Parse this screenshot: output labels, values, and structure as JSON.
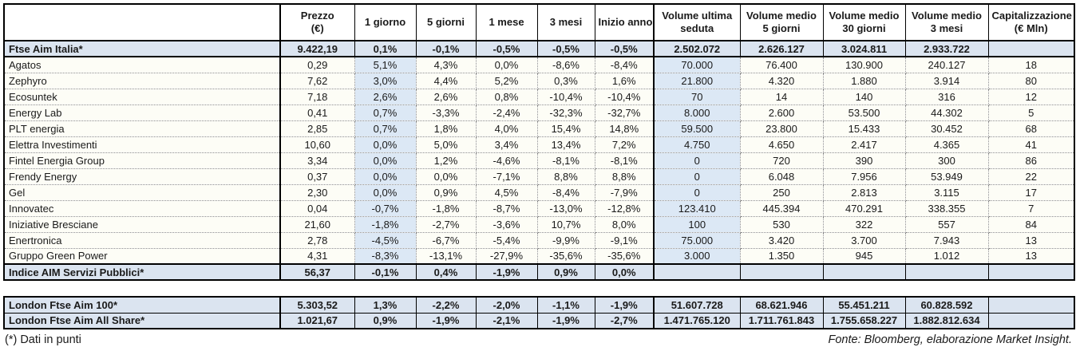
{
  "page": {
    "footnote": "(*) Dati in punti",
    "source": "Fonte: Bloomberg, elaborazione Market Insight."
  },
  "colors": {
    "highlight_row": "#dbe4f0",
    "highlight_column": "#dce8f5",
    "grid": "#000000",
    "cell_bg": "#fdfdf6"
  },
  "table": {
    "columns": [
      {
        "id": "name",
        "label_lines": [
          ""
        ]
      },
      {
        "id": "prezzo",
        "label_lines": [
          "Prezzo",
          "(€)"
        ]
      },
      {
        "id": "d1",
        "label_lines": [
          "1 giorno"
        ]
      },
      {
        "id": "d5",
        "label_lines": [
          "5 giorni"
        ]
      },
      {
        "id": "m1",
        "label_lines": [
          "1 mese"
        ]
      },
      {
        "id": "m3",
        "label_lines": [
          "3 mesi"
        ]
      },
      {
        "id": "ytd",
        "label_lines": [
          "Inizio anno"
        ]
      },
      {
        "id": "vol_last",
        "label_lines": [
          "Volume ultima",
          "seduta"
        ]
      },
      {
        "id": "vol5",
        "label_lines": [
          "Volume medio",
          "5 giorni"
        ]
      },
      {
        "id": "vol30",
        "label_lines": [
          "Volume medio",
          "30 giorni"
        ]
      },
      {
        "id": "vol3m",
        "label_lines": [
          "Volume medio",
          "3 mesi"
        ]
      },
      {
        "id": "cap",
        "label_lines": [
          "Capitalizzazione",
          "(€ Mln)"
        ]
      }
    ],
    "ftse_row": {
      "cells": [
        "Ftse Aim Italia*",
        "9.422,19",
        "0,1%",
        "-0,1%",
        "-0,5%",
        "-0,5%",
        "-0,5%",
        "2.502.072",
        "2.626.127",
        "3.024.811",
        "2.933.722",
        ""
      ]
    },
    "company_rows": [
      {
        "cells": [
          "Agatos",
          "0,29",
          "5,1%",
          "4,3%",
          "0,0%",
          "-8,6%",
          "-8,4%",
          "70.000",
          "76.400",
          "130.900",
          "240.127",
          "18"
        ]
      },
      {
        "cells": [
          "Zephyro",
          "7,62",
          "3,0%",
          "4,4%",
          "5,2%",
          "0,3%",
          "1,6%",
          "21.800",
          "4.320",
          "1.880",
          "3.914",
          "80"
        ]
      },
      {
        "cells": [
          "Ecosuntek",
          "7,18",
          "2,6%",
          "2,6%",
          "0,8%",
          "-10,4%",
          "-10,4%",
          "70",
          "14",
          "140",
          "316",
          "12"
        ]
      },
      {
        "cells": [
          "Energy Lab",
          "0,41",
          "0,7%",
          "-3,3%",
          "-2,4%",
          "-32,3%",
          "-32,7%",
          "8.000",
          "2.600",
          "53.500",
          "44.302",
          "5"
        ]
      },
      {
        "cells": [
          "PLT energia",
          "2,85",
          "0,7%",
          "1,8%",
          "4,0%",
          "15,4%",
          "14,8%",
          "59.500",
          "23.800",
          "15.433",
          "30.452",
          "68"
        ]
      },
      {
        "cells": [
          "Elettra Investimenti",
          "10,60",
          "0,0%",
          "5,0%",
          "3,4%",
          "13,4%",
          "7,2%",
          "4.750",
          "4.650",
          "2.417",
          "4.365",
          "41"
        ]
      },
      {
        "cells": [
          "Fintel Energia Group",
          "3,34",
          "0,0%",
          "1,2%",
          "-4,6%",
          "-8,1%",
          "-8,1%",
          "0",
          "720",
          "390",
          "300",
          "86"
        ]
      },
      {
        "cells": [
          "Frendy Energy",
          "0,37",
          "0,0%",
          "0,0%",
          "-7,1%",
          "8,8%",
          "8,8%",
          "0",
          "6.048",
          "7.956",
          "53.949",
          "22"
        ]
      },
      {
        "cells": [
          "Gel",
          "2,30",
          "0,0%",
          "0,9%",
          "4,5%",
          "-8,4%",
          "-7,9%",
          "0",
          "250",
          "2.813",
          "3.115",
          "17"
        ]
      },
      {
        "cells": [
          "Innovatec",
          "0,04",
          "-0,7%",
          "-1,8%",
          "-8,7%",
          "-13,0%",
          "-12,8%",
          "123.410",
          "445.394",
          "470.291",
          "338.355",
          "7"
        ]
      },
      {
        "cells": [
          "Iniziative Bresciane",
          "21,60",
          "-1,8%",
          "-2,7%",
          "-3,6%",
          "10,7%",
          "8,0%",
          "100",
          "530",
          "322",
          "557",
          "84"
        ]
      },
      {
        "cells": [
          "Enertronica",
          "2,78",
          "-4,5%",
          "-6,7%",
          "-5,4%",
          "-9,9%",
          "-9,1%",
          "75.000",
          "3.420",
          "3.700",
          "7.943",
          "13"
        ]
      },
      {
        "cells": [
          "Gruppo Green Power",
          "4,31",
          "-8,3%",
          "-13,1%",
          "-27,9%",
          "-35,6%",
          "-35,6%",
          "3.000",
          "1.350",
          "945",
          "1.012",
          "13"
        ]
      }
    ],
    "servizi_row": {
      "cells": [
        "Indice AIM Servizi Pubblici*",
        "56,37",
        "-0,1%",
        "0,4%",
        "-1,9%",
        "0,9%",
        "0,0%",
        "",
        "",
        "",
        "",
        ""
      ]
    }
  },
  "london_table": {
    "rows": [
      {
        "cells": [
          "London Ftse Aim 100*",
          "5.303,52",
          "1,3%",
          "-2,2%",
          "-2,0%",
          "-1,1%",
          "-1,9%",
          "51.607.728",
          "68.621.946",
          "55.451.211",
          "60.828.592",
          ""
        ]
      },
      {
        "cells": [
          "London Ftse Aim All Share*",
          "1.021,67",
          "0,9%",
          "-1,9%",
          "-2,1%",
          "-1,9%",
          "-2,7%",
          "1.471.765.120",
          "1.711.761.843",
          "1.755.658.227",
          "1.882.812.634",
          ""
        ]
      }
    ]
  }
}
